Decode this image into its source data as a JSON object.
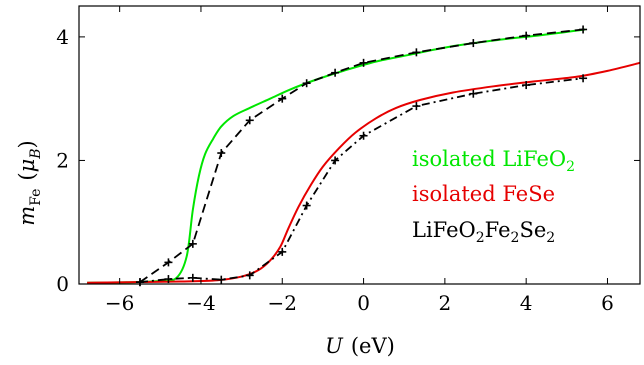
{
  "chart_data": {
    "type": "line",
    "xlabel": "U",
    "xlabel_unit": "(eV)",
    "ylabel": "m",
    "ylabel_sub": "Fe",
    "ylabel_unit_open": "(",
    "ylabel_unit": "μ",
    "ylabel_unit_sub": "B",
    "ylabel_unit_close": ")",
    "xlim": [
      -7,
      6.8
    ],
    "ylim": [
      0,
      4.5
    ],
    "xticks": [
      -6,
      -4,
      -2,
      0,
      2,
      4,
      6
    ],
    "xtick_labels": [
      "−6",
      "−4",
      "−2",
      "0",
      "2",
      "4",
      "6"
    ],
    "yticks": [
      0,
      2,
      4
    ],
    "ytick_labels": [
      "0",
      "2",
      "4"
    ],
    "legend_position": "inside-right",
    "series": [
      {
        "name": "isolated LiFeO",
        "name_sub": "2",
        "color": "#00e600",
        "style": "solid",
        "markers": false,
        "x": [
          -6.8,
          -5.6,
          -5.0,
          -4.6,
          -4.35,
          -4.2,
          -4.05,
          -3.9,
          -3.7,
          -3.5,
          -3.2,
          -2.8,
          -2.3,
          -1.8,
          -1.2,
          -0.5,
          0.3,
          1.2,
          2.2,
          3.3,
          4.4,
          5.45
        ],
        "y": [
          0.02,
          0.03,
          0.05,
          0.1,
          0.45,
          1.2,
          1.75,
          2.1,
          2.35,
          2.55,
          2.72,
          2.85,
          3.0,
          3.15,
          3.3,
          3.45,
          3.6,
          3.72,
          3.85,
          3.95,
          4.03,
          4.12
        ]
      },
      {
        "name": "isolated FeSe",
        "color": "#e60000",
        "style": "solid",
        "markers": false,
        "x": [
          -6.8,
          -5.6,
          -4.5,
          -3.6,
          -3.0,
          -2.6,
          -2.3,
          -2.05,
          -1.85,
          -1.6,
          -1.3,
          -1.0,
          -0.6,
          -0.2,
          0.3,
          0.8,
          1.4,
          2.2,
          3.2,
          4.2,
          5.2,
          6.0,
          6.8
        ],
        "y": [
          0.02,
          0.03,
          0.04,
          0.06,
          0.12,
          0.22,
          0.38,
          0.6,
          0.9,
          1.25,
          1.6,
          1.9,
          2.2,
          2.45,
          2.68,
          2.85,
          2.98,
          3.1,
          3.2,
          3.28,
          3.35,
          3.45,
          3.58
        ]
      },
      {
        "name": "LiFeO",
        "name_sub1": "2",
        "name_mid": "Fe",
        "name_sub2": "2",
        "name_end": "Se",
        "name_sub3": "2",
        "color": "#000000",
        "style": "dashed",
        "markers": true,
        "x": [
          -5.5,
          -4.8,
          -4.2,
          -3.5,
          -2.8,
          -2.0,
          -1.4,
          -0.7,
          0.0,
          1.3,
          2.7,
          4.0,
          5.4
        ],
        "y": [
          0.03,
          0.35,
          0.65,
          2.12,
          2.65,
          3.0,
          3.25,
          3.42,
          3.58,
          3.75,
          3.9,
          4.02,
          4.12
        ]
      },
      {
        "name": "",
        "color": "#000000",
        "style": "dashdot",
        "markers": true,
        "x": [
          -5.5,
          -4.8,
          -4.2,
          -3.5,
          -2.8,
          -2.0,
          -1.4,
          -0.7,
          0.0,
          1.3,
          2.7,
          4.0,
          5.4
        ],
        "y": [
          0.03,
          0.08,
          0.1,
          0.07,
          0.14,
          0.52,
          1.27,
          2.0,
          2.4,
          2.88,
          3.08,
          3.22,
          3.33
        ]
      }
    ]
  }
}
